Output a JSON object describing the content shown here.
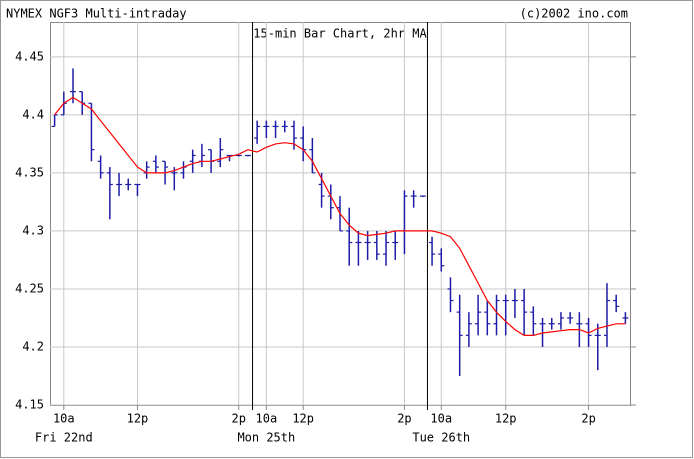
{
  "chart_data": {
    "type": "ohlc",
    "title": "NYMEX NGF3 Multi-intraday",
    "source": "(c)2002 ino.com",
    "subtitle": "15-min Bar Chart, 2hr MA",
    "categories": [
      null,
      "10a",
      null,
      null,
      null,
      null,
      null,
      null,
      null,
      "12p",
      null,
      null,
      null,
      null,
      null,
      null,
      null,
      null,
      null,
      null,
      "2p",
      null,
      null,
      "10a",
      null,
      null,
      null,
      "12p",
      null,
      null,
      null,
      null,
      null,
      null,
      null,
      null,
      null,
      null,
      "2p",
      null,
      null,
      null,
      "10a",
      null,
      null,
      null,
      null,
      null,
      null,
      "12p",
      null,
      null,
      null,
      null,
      null,
      null,
      null,
      null,
      "2p",
      null,
      null,
      null,
      null
    ],
    "sessions": [
      {
        "label": "Fri 22nd",
        "start": 0
      },
      {
        "label": "Mon 25th",
        "start": 22
      },
      {
        "label": "Tue 26th",
        "start": 41
      }
    ],
    "open": [
      4.39,
      4.4,
      4.42,
      4.42,
      4.41,
      4.36,
      4.35,
      4.34,
      4.34,
      4.34,
      4.35,
      4.36,
      4.36,
      4.35,
      4.35,
      4.36,
      4.36,
      4.37,
      4.36,
      4.365,
      4.365,
      4.365,
      4.38,
      4.39,
      4.39,
      4.39,
      4.39,
      4.38,
      4.37,
      4.34,
      4.33,
      4.32,
      4.3,
      4.29,
      4.29,
      4.29,
      4.28,
      4.29,
      4.3,
      4.33,
      4.33,
      4.29,
      4.28,
      4.25,
      4.23,
      4.21,
      4.22,
      4.23,
      4.22,
      4.24,
      4.24,
      4.24,
      4.23,
      4.22,
      4.22,
      4.22,
      4.225,
      4.22,
      4.22,
      4.21,
      4.21,
      4.24,
      4.225
    ],
    "high": [
      4.4,
      4.42,
      4.44,
      4.42,
      4.41,
      4.365,
      4.355,
      4.35,
      4.345,
      4.34,
      4.36,
      4.365,
      4.36,
      4.355,
      4.36,
      4.37,
      4.375,
      4.37,
      4.38,
      4.365,
      4.365,
      4.365,
      4.395,
      4.395,
      4.395,
      4.395,
      4.395,
      4.39,
      4.38,
      4.35,
      4.34,
      4.33,
      4.32,
      4.3,
      4.3,
      4.3,
      4.3,
      4.3,
      4.335,
      4.335,
      4.33,
      4.295,
      4.285,
      4.26,
      4.245,
      4.23,
      4.245,
      4.24,
      4.245,
      4.245,
      4.25,
      4.25,
      4.235,
      4.225,
      4.225,
      4.23,
      4.23,
      4.23,
      4.225,
      4.22,
      4.255,
      4.245,
      4.23
    ],
    "low": [
      4.39,
      4.4,
      4.41,
      4.4,
      4.36,
      4.345,
      4.31,
      4.33,
      4.335,
      4.33,
      4.345,
      4.35,
      4.34,
      4.335,
      4.345,
      4.35,
      4.355,
      4.35,
      4.355,
      4.36,
      4.365,
      4.365,
      4.375,
      4.38,
      4.38,
      4.385,
      4.37,
      4.36,
      4.35,
      4.32,
      4.31,
      4.3,
      4.27,
      4.27,
      4.275,
      4.275,
      4.27,
      4.275,
      4.28,
      4.32,
      4.33,
      4.27,
      4.265,
      4.23,
      4.175,
      4.2,
      4.21,
      4.21,
      4.21,
      4.21,
      4.225,
      4.21,
      4.21,
      4.2,
      4.215,
      4.215,
      4.22,
      4.2,
      4.2,
      4.18,
      4.2,
      4.23,
      4.22
    ],
    "close": [
      4.4,
      4.41,
      4.42,
      4.41,
      4.37,
      4.35,
      4.34,
      4.34,
      4.34,
      4.34,
      4.355,
      4.355,
      4.355,
      4.35,
      4.355,
      4.365,
      4.365,
      4.36,
      4.37,
      4.365,
      4.365,
      4.365,
      4.39,
      4.39,
      4.39,
      4.39,
      4.38,
      4.37,
      4.35,
      4.33,
      4.32,
      4.3,
      4.29,
      4.29,
      4.29,
      4.28,
      4.29,
      4.29,
      4.33,
      4.33,
      4.33,
      4.28,
      4.27,
      4.24,
      4.21,
      4.22,
      4.23,
      4.22,
      4.24,
      4.24,
      4.24,
      4.23,
      4.22,
      4.22,
      4.22,
      4.225,
      4.225,
      4.22,
      4.21,
      4.21,
      4.24,
      4.235,
      4.225
    ],
    "color": "#1c1ca8",
    "ma": {
      "color": "#ff0000",
      "values": [
        4.4,
        4.41,
        4.415,
        4.41,
        4.405,
        4.395,
        4.385,
        4.375,
        4.365,
        4.355,
        4.35,
        4.35,
        4.35,
        4.352,
        4.355,
        4.358,
        4.36,
        4.36,
        4.362,
        4.364,
        4.366,
        4.37,
        4.368,
        4.372,
        4.375,
        4.376,
        4.375,
        4.37,
        4.36,
        4.345,
        4.33,
        4.315,
        4.305,
        4.298,
        4.296,
        4.297,
        4.298,
        4.3,
        4.3,
        4.3,
        4.3,
        4.3,
        4.298,
        4.295,
        4.285,
        4.27,
        4.255,
        4.24,
        4.23,
        4.222,
        4.215,
        4.21,
        4.21,
        4.212,
        4.213,
        4.214,
        4.215,
        4.215,
        4.212,
        4.216,
        4.218,
        4.22,
        4.22
      ]
    },
    "ylim": [
      4.15,
      4.48
    ],
    "yticks": [
      4.15,
      4.2,
      4.25,
      4.3,
      4.35,
      4.4,
      4.45
    ],
    "grid": true
  }
}
